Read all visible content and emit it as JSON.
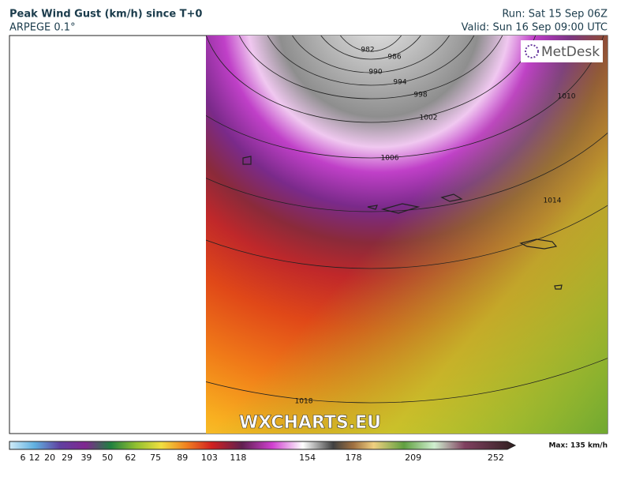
{
  "header": {
    "title": "Peak Wind Gust (km/h) since T+0",
    "model": "ARPEGE 0.1°",
    "run": "Run: Sat 15 Sep 06Z",
    "valid": "Valid: Sun 16 Sep 09:00 UTC"
  },
  "map": {
    "logo": "MetDesk",
    "watermark": "WXCHARTS.EU",
    "isobar_labels": [
      982,
      986,
      990,
      994,
      998,
      1002,
      1006,
      1010,
      1014,
      1018
    ]
  },
  "colorbar": {
    "ticks": [
      6,
      12,
      20,
      29,
      39,
      50,
      62,
      75,
      89,
      103,
      118,
      154,
      178,
      209,
      252
    ],
    "lim": [
      -1,
      258
    ],
    "max_label": "Max: 135 km/h"
  }
}
